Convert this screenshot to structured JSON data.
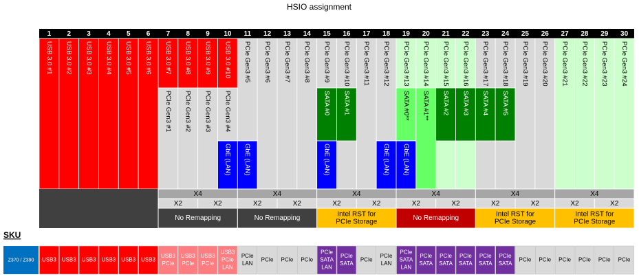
{
  "title": "HSIO assignment",
  "columns": [
    {
      "number": "1",
      "cells": [
        {
          "label": "USB 3.0 #1",
          "color": "#ff0000"
        }
      ]
    },
    {
      "number": "2",
      "cells": [
        {
          "label": "USB 3.0 #2",
          "color": "#ff0000"
        }
      ]
    },
    {
      "number": "3",
      "cells": [
        {
          "label": "USB 3.0 #3",
          "color": "#ff0000"
        }
      ]
    },
    {
      "number": "4",
      "cells": [
        {
          "label": "USB 3.0 #4",
          "color": "#ff0000"
        }
      ]
    },
    {
      "number": "5",
      "cells": [
        {
          "label": "USB 3.0 #5",
          "color": "#ff0000"
        }
      ]
    },
    {
      "number": "6",
      "cells": [
        {
          "label": "USB 3.0 #6",
          "color": "#ff0000"
        }
      ]
    },
    {
      "number": "7",
      "cells": [
        {
          "label": "USB 3.0 #7",
          "color": "#ff0000"
        },
        {
          "label": "PCIe Gen3 #1",
          "color": "#d9d9d9"
        }
      ]
    },
    {
      "number": "8",
      "cells": [
        {
          "label": "USB 3.0 #8",
          "color": "#ff0000"
        },
        {
          "label": "PCIe Gen3 #2",
          "color": "#d9d9d9"
        }
      ]
    },
    {
      "number": "9",
      "cells": [
        {
          "label": "USB 3.0 #9",
          "color": "#ff0000"
        },
        {
          "label": "PCIe Gen3 #3",
          "color": "#d9d9d9"
        }
      ]
    },
    {
      "number": "10",
      "cells": [
        {
          "label": "USB 3.0 #10",
          "color": "#ff0000"
        },
        {
          "label": "PCIe Gen3 #4",
          "color": "#d9d9d9"
        },
        {
          "label": "GbE (LAN)",
          "color": "#0000ff"
        }
      ]
    },
    {
      "number": "11",
      "cells": [
        {
          "label": "PCIe Gen3 #5",
          "color": "#d9d9d9"
        },
        {
          "label": "GbE (LAN)",
          "color": "#0000ff"
        }
      ]
    },
    {
      "number": "12",
      "cells": [
        {
          "label": "PCIe Gen3 #6",
          "color": "#d9d9d9"
        }
      ]
    },
    {
      "number": "13",
      "cells": [
        {
          "label": "PCIe Gen3 #7",
          "color": "#d9d9d9"
        }
      ]
    },
    {
      "number": "14",
      "cells": [
        {
          "label": "PCIe Gen3 #8",
          "color": "#d9d9d9"
        }
      ]
    },
    {
      "number": "15",
      "cells": [
        {
          "label": "PCIe Gen3 #9",
          "color": "#d9d9d9"
        },
        {
          "label": "SATA #0",
          "color": "#008000"
        },
        {
          "label": "GbE (LAN)",
          "color": "#0000ff"
        }
      ]
    },
    {
      "number": "16",
      "cells": [
        {
          "label": "PCIe Gen3 #10",
          "color": "#d9d9d9"
        },
        {
          "label": "SATA #1",
          "color": "#008000"
        }
      ]
    },
    {
      "number": "17",
      "cells": [
        {
          "label": "PCIe Gen3 #11",
          "color": "#d9d9d9"
        }
      ]
    },
    {
      "number": "18",
      "cells": [
        {
          "label": "PCIe Gen3 #12",
          "color": "#d9d9d9"
        },
        {
          "label": "GbE (LAN)",
          "color": "#0000ff"
        }
      ]
    },
    {
      "number": "19",
      "cells": [
        {
          "label": "PCIe Gen3 #13",
          "color": "#ccffcc"
        },
        {
          "label": "SATA #0**",
          "color": "#66ff66"
        },
        {
          "label": "GbE (LAN)",
          "color": "#0000ff"
        }
      ]
    },
    {
      "number": "20",
      "cells": [
        {
          "label": "PCIe Gen3 #14",
          "color": "#ccffcc"
        },
        {
          "label": "SATA #1**",
          "color": "#66ff66"
        }
      ]
    },
    {
      "number": "21",
      "cells": [
        {
          "label": "PCIe Gen3 #15",
          "color": "#ccffcc"
        },
        {
          "label": "SATA #2",
          "color": "#008000"
        }
      ]
    },
    {
      "number": "22",
      "cells": [
        {
          "label": "PCIe Gen3 #16",
          "color": "#ccffcc"
        },
        {
          "label": "SATA #3",
          "color": "#008000"
        }
      ]
    },
    {
      "number": "23",
      "cells": [
        {
          "label": "PCIe Gen3 #17",
          "color": "#d9d9d9"
        },
        {
          "label": "SATA #4",
          "color": "#008000"
        }
      ]
    },
    {
      "number": "24",
      "cells": [
        {
          "label": "PCIe Gen3 #18",
          "color": "#d9d9d9"
        },
        {
          "label": "SATA #5",
          "color": "#008000"
        }
      ]
    },
    {
      "number": "25",
      "cells": [
        {
          "label": "PCIe Gen3 #19",
          "color": "#d9d9d9"
        }
      ]
    },
    {
      "number": "26",
      "cells": [
        {
          "label": "PCIe Gen3 #20",
          "color": "#d9d9d9"
        }
      ]
    },
    {
      "number": "27",
      "cells": [
        {
          "label": "PCIe Gen3 #21",
          "color": "#ccffcc"
        }
      ]
    },
    {
      "number": "28",
      "cells": [
        {
          "label": "PCIe Gen3 #22",
          "color": "#ccffcc"
        }
      ]
    },
    {
      "number": "29",
      "cells": [
        {
          "label": "PCIe Gen3 #23",
          "color": "#ccffcc"
        }
      ]
    },
    {
      "number": "30",
      "cells": [
        {
          "label": "PCIe Gen3 #24",
          "color": "#ccffcc"
        }
      ]
    }
  ],
  "lanes": {
    "x4": [
      "X4",
      "X4",
      "X4",
      "X4",
      "X4",
      "X4"
    ],
    "x2": [
      "X2",
      "X2",
      "X2",
      "X2",
      "X2",
      "X2",
      "X2",
      "X2",
      "X2",
      "X2",
      "X2",
      "X2"
    ],
    "modes": [
      {
        "lines": [
          "No Remapping"
        ],
        "color": "#404040"
      },
      {
        "lines": [
          "No Remapping"
        ],
        "color": "#404040"
      },
      {
        "lines": [
          "Intel RST for",
          "PCIe Storage"
        ],
        "color": "#ffc000"
      },
      {
        "lines": [
          "No Remapping"
        ],
        "color": "#c00000"
      },
      {
        "lines": [
          "Intel RST for",
          "PCIe Storage"
        ],
        "color": "#ffc000"
      },
      {
        "lines": [
          "Intel RST for",
          "PCIe Storage"
        ],
        "color": "#ffc000"
      }
    ]
  },
  "sku": {
    "title": "SKU",
    "name": "Z370 / Z390",
    "name_color": "#0070c0",
    "cells": [
      {
        "lines": [
          "USB3"
        ],
        "color": "#ff0000"
      },
      {
        "lines": [
          "USB3"
        ],
        "color": "#ff0000"
      },
      {
        "lines": [
          "USB3"
        ],
        "color": "#ff0000"
      },
      {
        "lines": [
          "USB3"
        ],
        "color": "#ff0000"
      },
      {
        "lines": [
          "USB3"
        ],
        "color": "#ff0000"
      },
      {
        "lines": [
          "USB3"
        ],
        "color": "#ff0000"
      },
      {
        "lines": [
          "USB3",
          "PCIe"
        ],
        "color": "#ff7c80"
      },
      {
        "lines": [
          "USB3",
          "PCIe"
        ],
        "color": "#ff7c80"
      },
      {
        "lines": [
          "USB3",
          "PCIe"
        ],
        "color": "#ff7c80"
      },
      {
        "lines": [
          "USB3",
          "PCIe",
          "LAN"
        ],
        "color": "#ff7c80"
      },
      {
        "lines": [
          "PCIe",
          "LAN"
        ],
        "color": "#d9d9d9"
      },
      {
        "lines": [
          "PCIe"
        ],
        "color": "#d9d9d9"
      },
      {
        "lines": [
          "PCIe"
        ],
        "color": "#d9d9d9"
      },
      {
        "lines": [
          "PCIe"
        ],
        "color": "#d9d9d9"
      },
      {
        "lines": [
          "PCIe",
          "SATA",
          "LAN"
        ],
        "color": "#7030a0"
      },
      {
        "lines": [
          "PCIe",
          "SATA"
        ],
        "color": "#7030a0"
      },
      {
        "lines": [
          "PCIe"
        ],
        "color": "#d9d9d9"
      },
      {
        "lines": [
          "PCIe",
          "LAN"
        ],
        "color": "#d9d9d9"
      },
      {
        "lines": [
          "PCIe",
          "SATA",
          "LAN"
        ],
        "color": "#7030a0"
      },
      {
        "lines": [
          "PCIe",
          "SATA"
        ],
        "color": "#7030a0"
      },
      {
        "lines": [
          "PCIe",
          "SATA"
        ],
        "color": "#7030a0"
      },
      {
        "lines": [
          "PCIe",
          "SATA"
        ],
        "color": "#7030a0"
      },
      {
        "lines": [
          "PCIe",
          "SATA"
        ],
        "color": "#7030a0"
      },
      {
        "lines": [
          "PCIe",
          "SATA"
        ],
        "color": "#7030a0"
      },
      {
        "lines": [
          "PCIe"
        ],
        "color": "#d9d9d9"
      },
      {
        "lines": [
          "PCIe"
        ],
        "color": "#d9d9d9"
      },
      {
        "lines": [
          "PCIe"
        ],
        "color": "#d9d9d9"
      },
      {
        "lines": [
          "PCIe"
        ],
        "color": "#d9d9d9"
      },
      {
        "lines": [
          "PCIe"
        ],
        "color": "#d9d9d9"
      },
      {
        "lines": [
          "PCIe"
        ],
        "color": "#d9d9d9"
      }
    ]
  }
}
